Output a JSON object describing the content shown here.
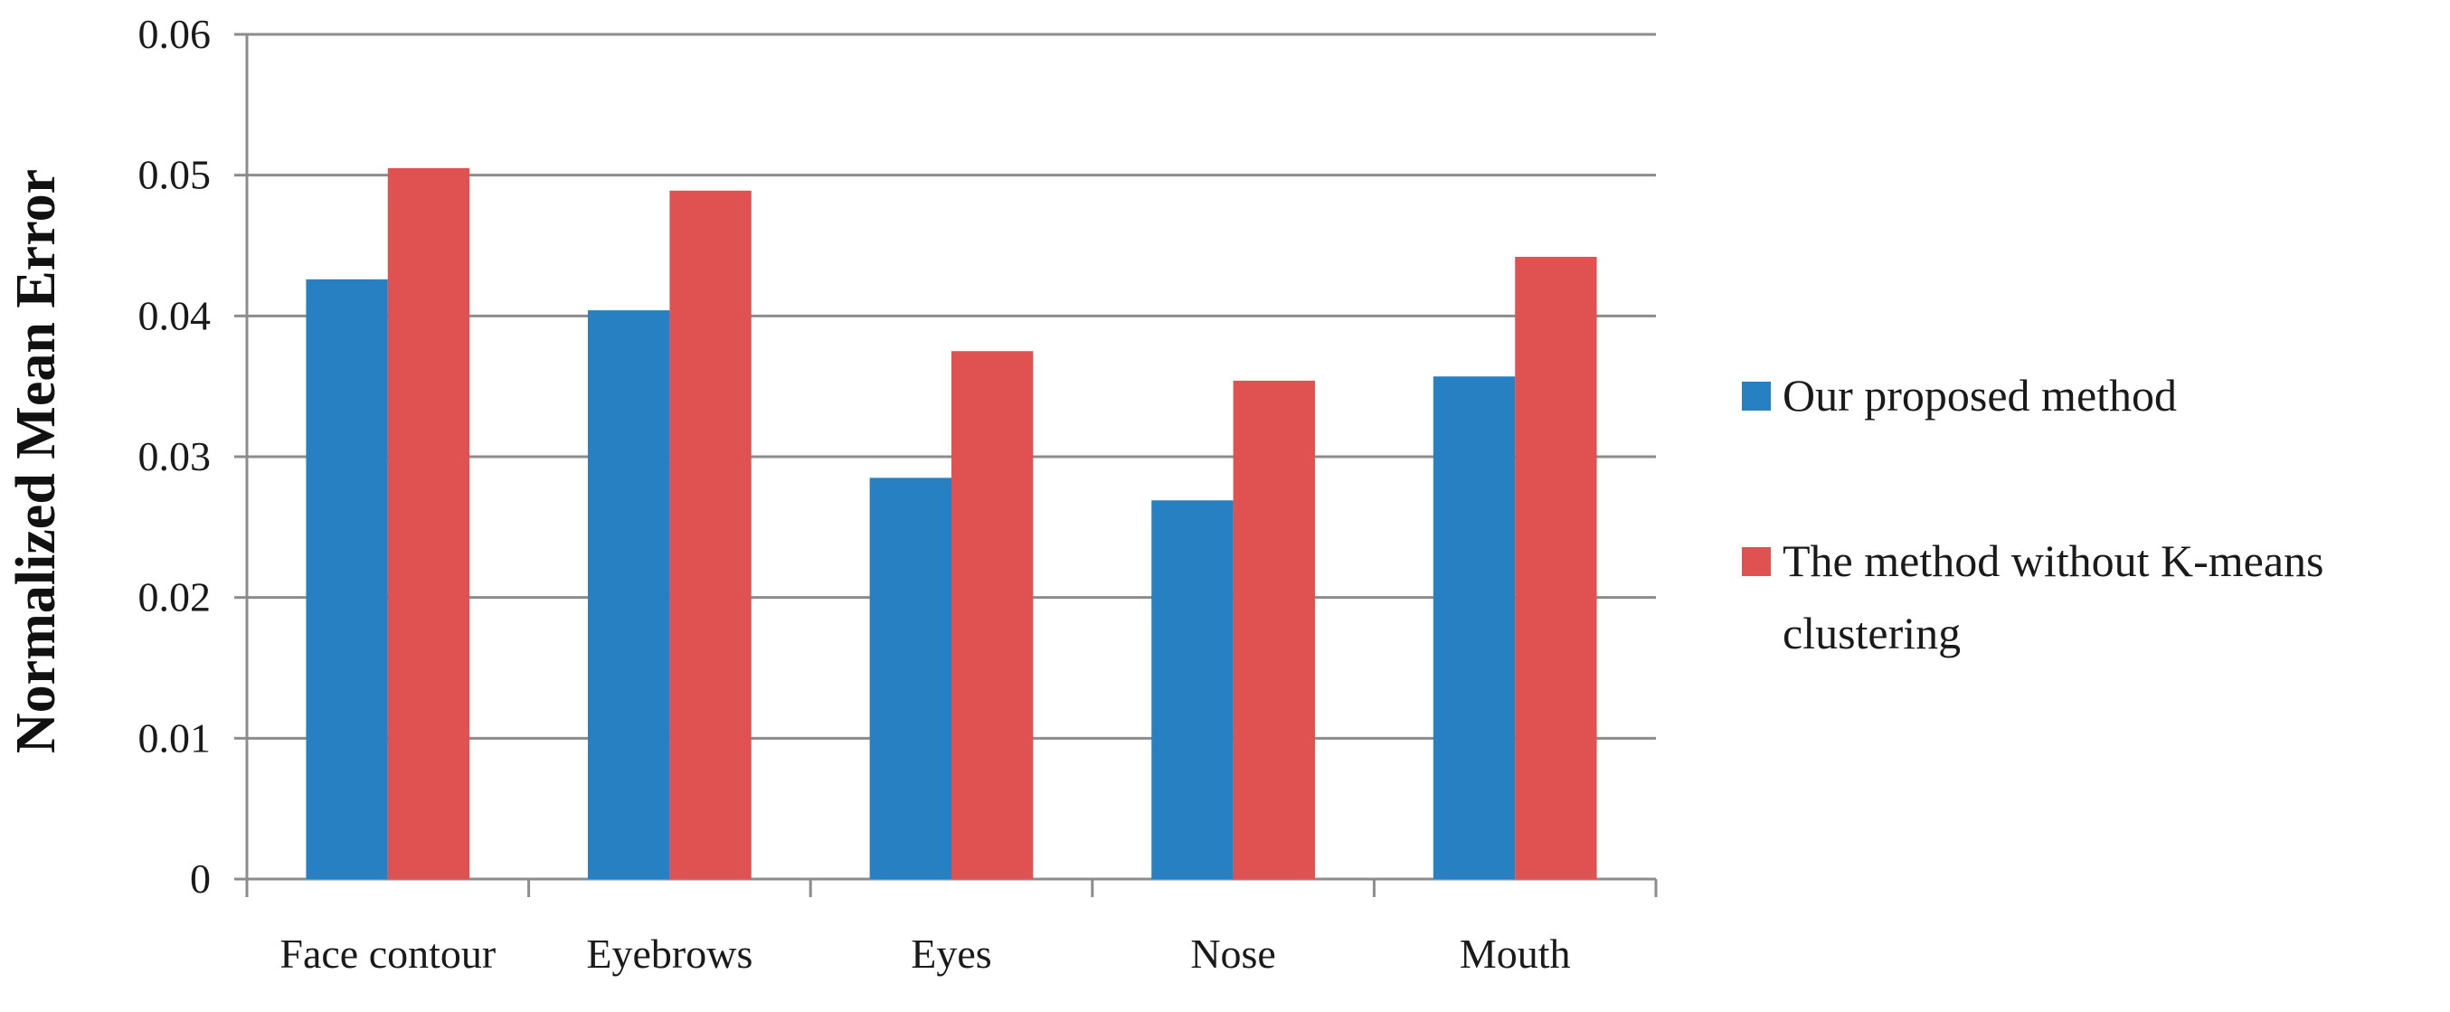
{
  "chart_data": {
    "type": "bar",
    "title": "",
    "xlabel": "",
    "ylabel": "Normalized Mean Error",
    "ylim": [
      0,
      0.06
    ],
    "yticks": [
      "0",
      "0.01",
      "0.02",
      "0.03",
      "0.04",
      "0.05",
      "0.06"
    ],
    "categories": [
      "Face contour",
      "Eyebrows",
      "Eyes",
      "Nose",
      "Mouth"
    ],
    "grid": true,
    "legend_position": "right",
    "series": [
      {
        "name": "Our proposed method",
        "color": "#2680c2",
        "values": [
          0.0426,
          0.0404,
          0.0285,
          0.0269,
          0.0357
        ]
      },
      {
        "name_lines": [
          "The method without K-means",
          "clustering"
        ],
        "color": "#e05252",
        "values": [
          0.0505,
          0.0489,
          0.0375,
          0.0354,
          0.0442
        ]
      }
    ]
  }
}
